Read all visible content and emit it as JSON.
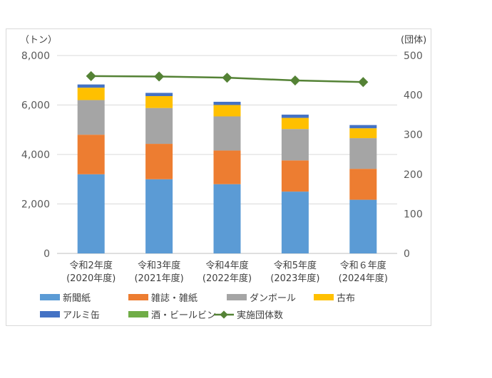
{
  "chart_data": {
    "type": "bar",
    "stacked": true,
    "y_left_unit": "（トン）",
    "y_right_unit": "(団体)",
    "ylim_left": [
      0,
      8000
    ],
    "ylim_right": [
      0,
      500
    ],
    "y_left_ticks": [
      "0",
      "2,000",
      "4,000",
      "6,000",
      "8,000"
    ],
    "y_left_tick_values": [
      0,
      2000,
      4000,
      6000,
      8000
    ],
    "y_right_ticks": [
      "0",
      "100",
      "200",
      "300",
      "400",
      "500"
    ],
    "y_right_tick_values": [
      0,
      100,
      200,
      300,
      400,
      500
    ],
    "grid": true,
    "legend_position": "bottom",
    "categories": [
      {
        "line1": "令和2年度",
        "line2": "(2020年度)"
      },
      {
        "line1": "令和3年度",
        "line2": "(2021年度)"
      },
      {
        "line1": "令和4年度",
        "line2": "(2022年度)"
      },
      {
        "line1": "令和5年度",
        "line2": "(2023年度)"
      },
      {
        "line1": "令和６年度",
        "line2": "(2024年度)"
      }
    ],
    "series": [
      {
        "name": "新聞紙",
        "color": "#5b9bd5",
        "values": [
          3200,
          3000,
          2800,
          2500,
          2170
        ]
      },
      {
        "name": "雑誌・雑紙",
        "color": "#ed7d31",
        "values": [
          1600,
          1430,
          1360,
          1260,
          1250
        ]
      },
      {
        "name": "ダンボール",
        "color": "#a5a5a5",
        "values": [
          1400,
          1450,
          1380,
          1270,
          1240
        ]
      },
      {
        "name": "古布",
        "color": "#ffc000",
        "values": [
          500,
          480,
          460,
          450,
          400
        ]
      },
      {
        "name": "アルミ缶",
        "color": "#4472c4",
        "values": [
          130,
          130,
          130,
          130,
          130
        ]
      },
      {
        "name": "酒・ビールビン",
        "color": "#70ad47",
        "values": [
          0,
          0,
          0,
          0,
          0
        ]
      }
    ],
    "line_series": {
      "name": "実施団体数",
      "color": "#548235",
      "axis": "right",
      "values": [
        448,
        447,
        444,
        437,
        433
      ]
    }
  }
}
